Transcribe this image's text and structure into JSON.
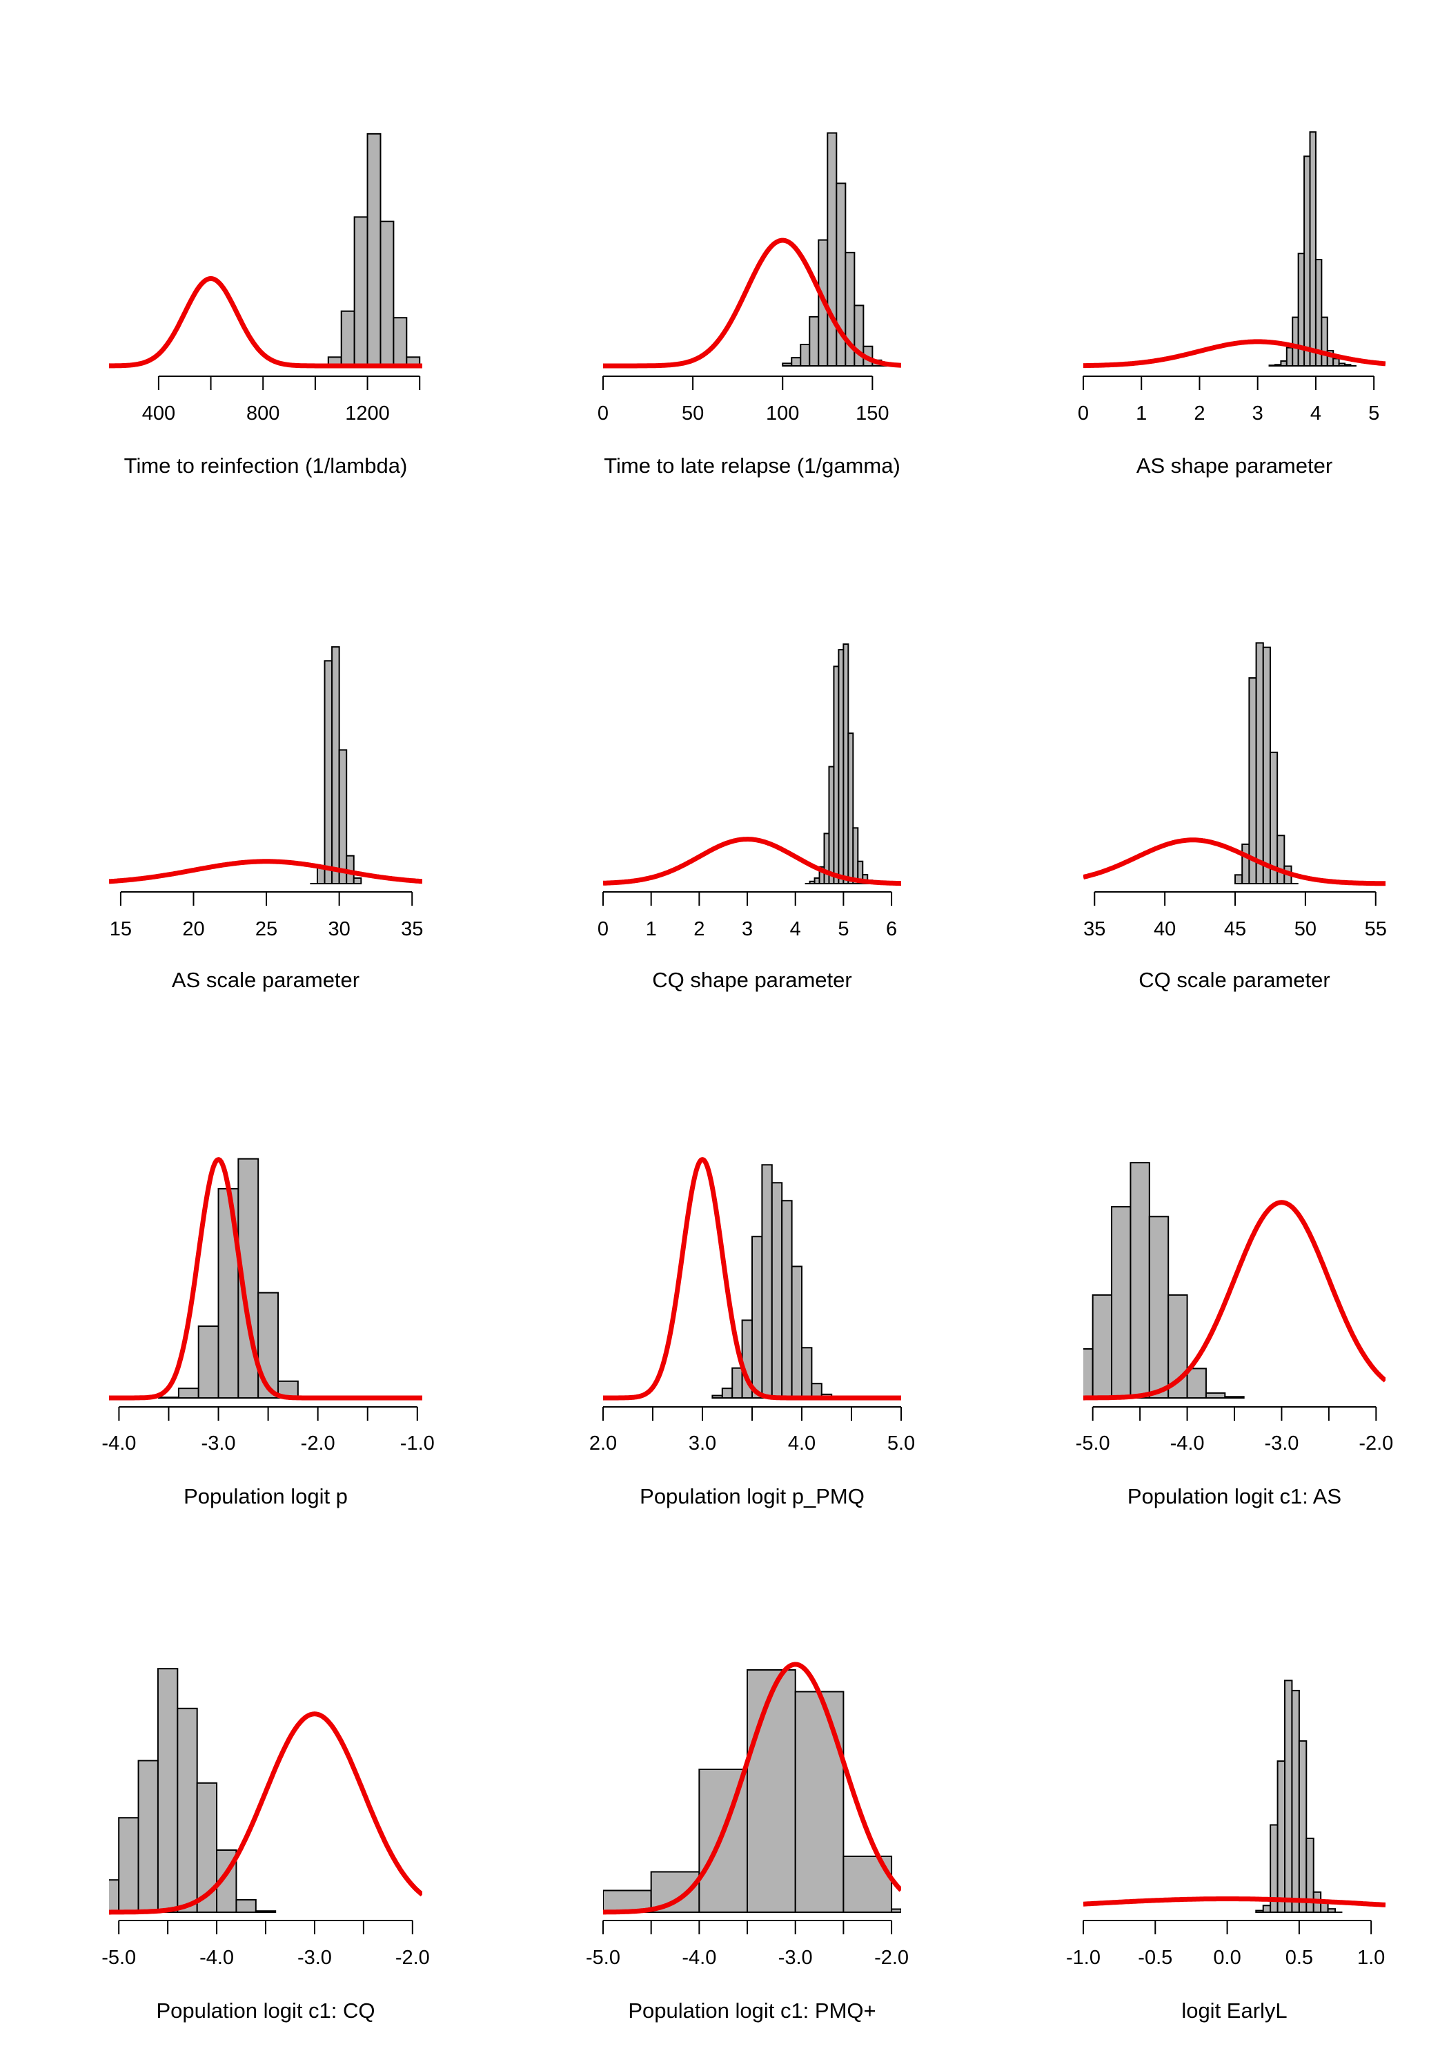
{
  "colors": {
    "bar_fill": "#b3b3b3",
    "bar_stroke": "#000000",
    "prior_line": "#ee0000"
  },
  "chart_data": [
    {
      "type": "bar",
      "xlabel": "Time to reinfection (1/lambda)",
      "xticks": [
        {
          "v": 400,
          "label": "400"
        },
        {
          "v": 800,
          "label": "800"
        },
        {
          "v": 1200,
          "label": "1200"
        }
      ],
      "xticks_minor": [
        600,
        1000,
        1400
      ],
      "xlim": [
        210,
        1410
      ],
      "ymax": 0.0111,
      "hist": {
        "bins": [
          [
            1050,
            1100,
            0.0004
          ],
          [
            1100,
            1150,
            0.0025
          ],
          [
            1150,
            1200,
            0.0068
          ],
          [
            1200,
            1250,
            0.0106
          ],
          [
            1250,
            1300,
            0.0066
          ],
          [
            1300,
            1350,
            0.0022
          ],
          [
            1350,
            1400,
            0.0004
          ]
        ],
        "baseline": [
          1050,
          1440
        ]
      },
      "prior": {
        "dist": "normal",
        "mean": 600,
        "sd": 100
      }
    },
    {
      "type": "bar",
      "xlabel": "Time to late relapse (1/gamma)",
      "xticks": [
        {
          "v": 0,
          "label": "0"
        },
        {
          "v": 50,
          "label": "50"
        },
        {
          "v": 100,
          "label": "100"
        },
        {
          "v": 150,
          "label": "150"
        }
      ],
      "xticks_minor": [],
      "xlim": [
        0,
        166
      ],
      "ymax": 0.0386,
      "hist": {
        "bins": [
          [
            100,
            105,
            0.0004
          ],
          [
            105,
            110,
            0.0013
          ],
          [
            110,
            115,
            0.0034
          ],
          [
            115,
            120,
            0.0078
          ],
          [
            120,
            125,
            0.02
          ],
          [
            125,
            130,
            0.037
          ],
          [
            130,
            135,
            0.029
          ],
          [
            135,
            140,
            0.018
          ],
          [
            140,
            145,
            0.0096
          ],
          [
            145,
            150,
            0.0031
          ],
          [
            150,
            155,
            0.0009
          ]
        ],
        "baseline": [
          100,
          160
        ]
      },
      "prior": {
        "dist": "normal",
        "mean": 100,
        "sd": 20
      }
    },
    {
      "type": "bar",
      "xlabel": "AS shape parameter",
      "xticks": [
        {
          "v": 0,
          "label": "0"
        },
        {
          "v": 1,
          "label": "1"
        },
        {
          "v": 2,
          "label": "2"
        },
        {
          "v": 3,
          "label": "3"
        },
        {
          "v": 4,
          "label": "4"
        },
        {
          "v": 5,
          "label": "5"
        }
      ],
      "xticks_minor": [],
      "xlim": [
        0,
        5.2
      ],
      "ymax": 4.0,
      "hist": {
        "bins": [
          [
            3.2,
            3.3,
            0.01
          ],
          [
            3.3,
            3.4,
            0.02
          ],
          [
            3.4,
            3.5,
            0.08
          ],
          [
            3.5,
            3.6,
            0.3
          ],
          [
            3.6,
            3.7,
            0.8
          ],
          [
            3.7,
            3.8,
            1.85
          ],
          [
            3.8,
            3.9,
            3.45
          ],
          [
            3.9,
            4.0,
            3.85
          ],
          [
            4.0,
            4.1,
            1.75
          ],
          [
            4.1,
            4.2,
            0.8
          ],
          [
            4.2,
            4.3,
            0.25
          ],
          [
            4.3,
            4.4,
            0.12
          ],
          [
            4.4,
            4.5,
            0.04
          ],
          [
            4.5,
            4.6,
            0.02
          ]
        ],
        "baseline": [
          3.2,
          4.7
        ]
      },
      "prior": {
        "dist": "normal",
        "mean": 3,
        "sd": 1
      }
    },
    {
      "type": "bar",
      "xlabel": "AS scale parameter",
      "xticks": [
        {
          "v": 15,
          "label": "15"
        },
        {
          "v": 20,
          "label": "20"
        },
        {
          "v": 25,
          "label": "25"
        },
        {
          "v": 30,
          "label": "30"
        },
        {
          "v": 35,
          "label": "35"
        }
      ],
      "xticks_minor": [],
      "xlim": [
        14.2,
        35.7
      ],
      "ymax": 0.88,
      "hist": {
        "bins": [
          [
            28.5,
            29,
            0.06
          ],
          [
            29,
            29.5,
            0.8
          ],
          [
            29.5,
            30,
            0.85
          ],
          [
            30,
            30.5,
            0.48
          ],
          [
            30.5,
            31,
            0.1
          ],
          [
            31,
            31.5,
            0.02
          ]
        ],
        "baseline": [
          28,
          31.5
        ]
      },
      "prior": {
        "dist": "normal",
        "mean": 25,
        "sd": 5
      }
    },
    {
      "type": "bar",
      "xlabel": "CQ shape parameter",
      "xticks": [
        {
          "v": 0,
          "label": "0"
        },
        {
          "v": 1,
          "label": "1"
        },
        {
          "v": 2,
          "label": "2"
        },
        {
          "v": 3,
          "label": "3"
        },
        {
          "v": 4,
          "label": "4"
        },
        {
          "v": 5,
          "label": "5"
        },
        {
          "v": 6,
          "label": "6"
        }
      ],
      "xticks_minor": [],
      "xlim": [
        0,
        6.2
      ],
      "ymax": 2.2,
      "hist": {
        "bins": [
          [
            4.3,
            4.4,
            0.02
          ],
          [
            4.4,
            4.5,
            0.05
          ],
          [
            4.5,
            4.6,
            0.15
          ],
          [
            4.6,
            4.7,
            0.45
          ],
          [
            4.7,
            4.8,
            1.05
          ],
          [
            4.8,
            4.9,
            1.95
          ],
          [
            4.9,
            5.0,
            2.1
          ],
          [
            5.0,
            5.1,
            2.15
          ],
          [
            5.1,
            5.2,
            1.35
          ],
          [
            5.2,
            5.3,
            0.5
          ],
          [
            5.3,
            5.4,
            0.2
          ],
          [
            5.4,
            5.5,
            0.08
          ],
          [
            5.5,
            5.6,
            0.03
          ]
        ],
        "baseline": [
          4.2,
          5.6
        ]
      },
      "prior": {
        "dist": "normal",
        "mean": 3,
        "sd": 1
      }
    },
    {
      "type": "bar",
      "xlabel": "CQ scale parameter",
      "xticks": [
        {
          "v": 35,
          "label": "35"
        },
        {
          "v": 40,
          "label": "40"
        },
        {
          "v": 45,
          "label": "45"
        },
        {
          "v": 50,
          "label": "50"
        },
        {
          "v": 55,
          "label": "55"
        }
      ],
      "xticks_minor": [],
      "xlim": [
        34.2,
        55.7
      ],
      "ymax": 0.56,
      "hist": {
        "bins": [
          [
            45,
            45.5,
            0.02
          ],
          [
            45.5,
            46,
            0.09
          ],
          [
            46,
            46.5,
            0.47
          ],
          [
            46.5,
            47,
            0.55
          ],
          [
            47,
            47.5,
            0.54
          ],
          [
            47.5,
            48,
            0.3
          ],
          [
            48,
            48.5,
            0.11
          ],
          [
            48.5,
            49,
            0.04
          ]
        ],
        "baseline": [
          45,
          49.5
        ]
      },
      "prior": {
        "dist": "normal",
        "mean": 42,
        "sd": 4
      }
    },
    {
      "type": "bar",
      "xlabel": "Population logit p",
      "xticks": [
        {
          "v": -4,
          "label": "-4.0"
        },
        {
          "v": -3,
          "label": "-3.0"
        },
        {
          "v": -2,
          "label": "-2.0"
        },
        {
          "v": -1,
          "label": "-1.0"
        }
      ],
      "xticks_minor": [
        -3.5,
        -2.5,
        -1.5
      ],
      "xlim": [
        -4.1,
        -0.95
      ],
      "ymax": 2.05,
      "hist": {
        "bins": [
          [
            -3.6,
            -3.4,
            0.005
          ],
          [
            -3.4,
            -3.2,
            0.08
          ],
          [
            -3.2,
            -3.0,
            0.6
          ],
          [
            -3.0,
            -2.8,
            1.75
          ],
          [
            -2.8,
            -2.6,
            2.0
          ],
          [
            -2.6,
            -2.4,
            0.88
          ],
          [
            -2.4,
            -2.2,
            0.14
          ],
          [
            -2.2,
            -2.0,
            0.005
          ]
        ],
        "baseline": [
          -3.6,
          -2.0
        ]
      },
      "prior": {
        "dist": "normal",
        "mean": -3,
        "sd": 0.2
      }
    },
    {
      "type": "bar",
      "xlabel": "Population logit p_PMQ",
      "xticks": [
        {
          "v": 2,
          "label": "2.0"
        },
        {
          "v": 3,
          "label": "3.0"
        },
        {
          "v": 4,
          "label": "4.0"
        },
        {
          "v": 5,
          "label": "5.0"
        }
      ],
      "xticks_minor": [
        2.5,
        3.5,
        4.5
      ],
      "xlim": [
        2.0,
        5.0
      ],
      "ymax": 2.05,
      "hist": {
        "bins": [
          [
            3.1,
            3.2,
            0.02
          ],
          [
            3.2,
            3.3,
            0.08
          ],
          [
            3.3,
            3.4,
            0.25
          ],
          [
            3.4,
            3.5,
            0.65
          ],
          [
            3.5,
            3.6,
            1.35
          ],
          [
            3.6,
            3.7,
            1.95
          ],
          [
            3.7,
            3.8,
            1.8
          ],
          [
            3.8,
            3.9,
            1.65
          ],
          [
            3.9,
            4.0,
            1.1
          ],
          [
            4.0,
            4.1,
            0.42
          ],
          [
            4.1,
            4.2,
            0.12
          ],
          [
            4.2,
            4.3,
            0.03
          ]
        ],
        "baseline": [
          3.1,
          4.3
        ]
      },
      "prior": {
        "dist": "normal",
        "mean": 3,
        "sd": 0.2
      }
    },
    {
      "type": "bar",
      "xlabel": "Population logit c1: AS",
      "xticks": [
        {
          "v": -5,
          "label": "-5.0"
        },
        {
          "v": -4,
          "label": "-4.0"
        },
        {
          "v": -3,
          "label": "-3.0"
        },
        {
          "v": -2,
          "label": "-2.0"
        }
      ],
      "xticks_minor": [
        -4.5,
        -3.5,
        -2.5
      ],
      "xlim": [
        -5.1,
        -1.9
      ],
      "ymax": 1.0,
      "hist": {
        "bins": [
          [
            -5.2,
            -5.0,
            0.2
          ],
          [
            -5.0,
            -4.8,
            0.42
          ],
          [
            -4.8,
            -4.6,
            0.78
          ],
          [
            -4.6,
            -4.4,
            0.96
          ],
          [
            -4.4,
            -4.2,
            0.74
          ],
          [
            -4.2,
            -4.0,
            0.42
          ],
          [
            -4.0,
            -3.8,
            0.12
          ],
          [
            -3.8,
            -3.6,
            0.02
          ],
          [
            -3.6,
            -3.4,
            0.005
          ]
        ],
        "baseline": [
          -5.2,
          -3.4
        ]
      },
      "prior": {
        "dist": "normal",
        "mean": -3,
        "sd": 0.5
      }
    },
    {
      "type": "bar",
      "xlabel": "Population logit c1: CQ",
      "xticks": [
        {
          "v": -5,
          "label": "-5.0"
        },
        {
          "v": -4,
          "label": "-4.0"
        },
        {
          "v": -3,
          "label": "-3.0"
        },
        {
          "v": -2,
          "label": "-2.0"
        }
      ],
      "xticks_minor": [
        -4.5,
        -3.5,
        -2.5
      ],
      "xlim": [
        -5.1,
        -1.9
      ],
      "ymax": 1.0,
      "hist": {
        "bins": [
          [
            -5.2,
            -5.0,
            0.13
          ],
          [
            -5.0,
            -4.8,
            0.38
          ],
          [
            -4.8,
            -4.6,
            0.61
          ],
          [
            -4.6,
            -4.4,
            0.98
          ],
          [
            -4.4,
            -4.2,
            0.82
          ],
          [
            -4.2,
            -4.0,
            0.52
          ],
          [
            -4.0,
            -3.8,
            0.25
          ],
          [
            -3.8,
            -3.6,
            0.05
          ],
          [
            -3.6,
            -3.4,
            0.005
          ]
        ],
        "baseline": [
          -5.2,
          -3.4
        ]
      },
      "prior": {
        "dist": "normal",
        "mean": -3,
        "sd": 0.5
      }
    },
    {
      "type": "bar",
      "xlabel": "Population logit c1: PMQ+",
      "xticks": [
        {
          "v": -5,
          "label": "-5.0"
        },
        {
          "v": -4,
          "label": "-4.0"
        },
        {
          "v": -3,
          "label": "-3.0"
        },
        {
          "v": -2,
          "label": "-2.0"
        }
      ],
      "xticks_minor": [
        -4.5,
        -3.5,
        -2.5
      ],
      "xlim": [
        -5.0,
        -1.9
      ],
      "ymax": 0.8,
      "hist": {
        "bins": [
          [
            -5.0,
            -4.5,
            0.07
          ],
          [
            -4.5,
            -4.0,
            0.13
          ],
          [
            -4.0,
            -3.5,
            0.46
          ],
          [
            -3.5,
            -3.0,
            0.78
          ],
          [
            -3.0,
            -2.5,
            0.71
          ],
          [
            -2.5,
            -2.0,
            0.18
          ],
          [
            -2.0,
            -1.9,
            0.01
          ]
        ],
        "baseline": [
          -5.0,
          -1.9
        ]
      },
      "prior": {
        "dist": "normal",
        "mean": -3,
        "sd": 0.5
      }
    },
    {
      "type": "bar",
      "xlabel": "logit EarlyL",
      "xticks": [
        {
          "v": -1,
          "label": "-1.0"
        },
        {
          "v": -0.5,
          "label": "-0.5"
        },
        {
          "v": 0,
          "label": "0.0"
        },
        {
          "v": 0.5,
          "label": "0.5"
        },
        {
          "v": 1,
          "label": "1.0"
        }
      ],
      "xticks_minor": [],
      "xlim": [
        -1.0,
        1.1
      ],
      "ymax": 7.4,
      "hist": {
        "bins": [
          [
            0.2,
            0.25,
            0.05
          ],
          [
            0.25,
            0.3,
            0.2
          ],
          [
            0.3,
            0.35,
            2.6
          ],
          [
            0.35,
            0.4,
            4.5
          ],
          [
            0.4,
            0.45,
            6.9
          ],
          [
            0.45,
            0.5,
            6.6
          ],
          [
            0.5,
            0.55,
            5.1
          ],
          [
            0.55,
            0.6,
            2.2
          ],
          [
            0.6,
            0.65,
            0.6
          ],
          [
            0.65,
            0.7,
            0.3
          ],
          [
            0.7,
            0.75,
            0.1
          ]
        ],
        "baseline": [
          0.2,
          0.8
        ]
      },
      "prior": {
        "dist": "normal",
        "mean": 0,
        "sd": 1.0
      }
    }
  ]
}
